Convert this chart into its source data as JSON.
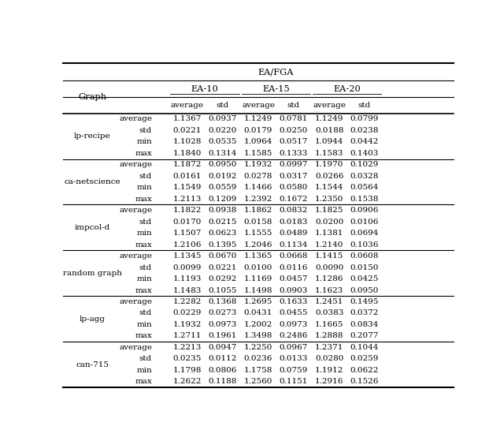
{
  "title": "EA/FGA",
  "col_groups": [
    "EA-10",
    "EA-15",
    "EA-20"
  ],
  "col_subheads": [
    "average",
    "std",
    "average",
    "std",
    "average",
    "std"
  ],
  "graphs": [
    "lp-recipe",
    "ca-netscience",
    "impcol-d",
    "random graph",
    "lp-agg",
    "can-715"
  ],
  "row_labels": [
    "average",
    "std",
    "min",
    "max"
  ],
  "data": {
    "lp-recipe": {
      "average": [
        "1.1367",
        "0.0937",
        "1.1249",
        "0.0781",
        "1.1249",
        "0.0799"
      ],
      "std": [
        "0.0221",
        "0.0220",
        "0.0179",
        "0.0250",
        "0.0188",
        "0.0238"
      ],
      "min": [
        "1.1028",
        "0.0535",
        "1.0964",
        "0.0517",
        "1.0944",
        "0.0442"
      ],
      "max": [
        "1.1840",
        "0.1314",
        "1.1585",
        "0.1333",
        "1.1583",
        "0.1403"
      ]
    },
    "ca-netscience": {
      "average": [
        "1.1872",
        "0.0950",
        "1.1932",
        "0.0997",
        "1.1970",
        "0.1029"
      ],
      "std": [
        "0.0161",
        "0.0192",
        "0.0278",
        "0.0317",
        "0.0266",
        "0.0328"
      ],
      "min": [
        "1.1549",
        "0.0559",
        "1.1466",
        "0.0580",
        "1.1544",
        "0.0564"
      ],
      "max": [
        "1.2113",
        "0.1209",
        "1.2392",
        "0.1672",
        "1.2350",
        "0.1538"
      ]
    },
    "impcol-d": {
      "average": [
        "1.1822",
        "0.0938",
        "1.1862",
        "0.0832",
        "1.1825",
        "0.0906"
      ],
      "std": [
        "0.0170",
        "0.0215",
        "0.0158",
        "0.0183",
        "0.0200",
        "0.0106"
      ],
      "min": [
        "1.1507",
        "0.0623",
        "1.1555",
        "0.0489",
        "1.1381",
        "0.0694"
      ],
      "max": [
        "1.2106",
        "0.1395",
        "1.2046",
        "0.1134",
        "1.2140",
        "0.1036"
      ]
    },
    "random graph": {
      "average": [
        "1.1345",
        "0.0670",
        "1.1365",
        "0.0668",
        "1.1415",
        "0.0608"
      ],
      "std": [
        "0.0099",
        "0.0221",
        "0.0100",
        "0.0116",
        "0.0090",
        "0.0150"
      ],
      "min": [
        "1.1193",
        "0.0292",
        "1.1169",
        "0.0457",
        "1.1286",
        "0.0425"
      ],
      "max": [
        "1.1483",
        "0.1055",
        "1.1498",
        "0.0903",
        "1.1623",
        "0.0950"
      ]
    },
    "lp-agg": {
      "average": [
        "1.2282",
        "0.1368",
        "1.2695",
        "0.1633",
        "1.2451",
        "0.1495"
      ],
      "std": [
        "0.0229",
        "0.0273",
        "0.0431",
        "0.0455",
        "0.0383",
        "0.0372"
      ],
      "min": [
        "1.1932",
        "0.0973",
        "1.2002",
        "0.0973",
        "1.1665",
        "0.0834"
      ],
      "max": [
        "1.2711",
        "0.1961",
        "1.3498",
        "0.2486",
        "1.2888",
        "0.2077"
      ]
    },
    "can-715": {
      "average": [
        "1.2213",
        "0.0947",
        "1.2250",
        "0.0967",
        "1.2371",
        "0.1044"
      ],
      "std": [
        "0.0235",
        "0.0112",
        "0.0236",
        "0.0133",
        "0.0280",
        "0.0259"
      ],
      "min": [
        "1.1798",
        "0.0806",
        "1.1758",
        "0.0759",
        "1.1912",
        "0.0622"
      ],
      "max": [
        "1.2622",
        "0.1188",
        "1.2560",
        "0.1151",
        "1.2916",
        "0.1526"
      ]
    }
  }
}
